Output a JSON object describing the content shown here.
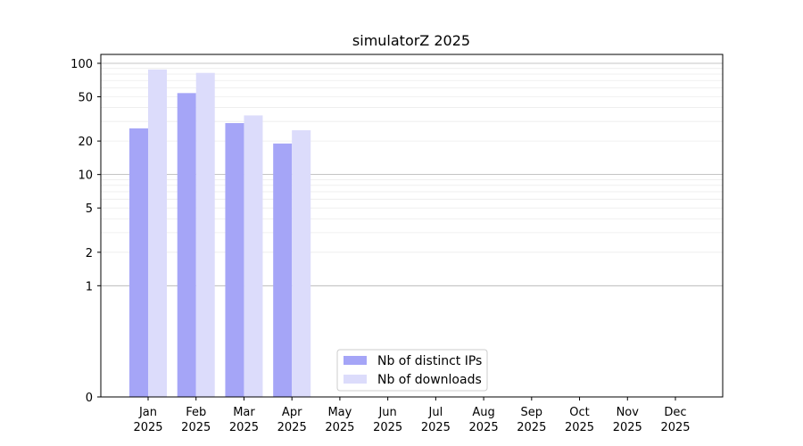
{
  "chart_data": {
    "type": "bar",
    "title": "simulatorZ 2025",
    "xlabel": "",
    "ylabel": "",
    "y_scale": "symlog",
    "y_ticks": [
      0,
      1,
      2,
      5,
      10,
      20,
      50,
      100
    ],
    "y_tick_labels": [
      "0",
      "1",
      "2",
      "5",
      "10",
      "20",
      "50",
      "100"
    ],
    "categories": [
      [
        "Jan",
        "2025"
      ],
      [
        "Feb",
        "2025"
      ],
      [
        "Mar",
        "2025"
      ],
      [
        "Apr",
        "2025"
      ],
      [
        "May",
        "2025"
      ],
      [
        "Jun",
        "2025"
      ],
      [
        "Jul",
        "2025"
      ],
      [
        "Aug",
        "2025"
      ],
      [
        "Sep",
        "2025"
      ],
      [
        "Oct",
        "2025"
      ],
      [
        "Nov",
        "2025"
      ],
      [
        "Dec",
        "2025"
      ]
    ],
    "series": [
      {
        "name": "Nb of distinct IPs",
        "color": "#a5a5f7",
        "values": [
          26,
          54,
          29,
          19,
          0,
          0,
          0,
          0,
          0,
          0,
          0,
          0
        ]
      },
      {
        "name": "Nb of downloads",
        "color": "#dcdcfb",
        "values": [
          88,
          82,
          34,
          25,
          0,
          0,
          0,
          0,
          0,
          0,
          0,
          0
        ]
      }
    ],
    "legend_position": "lower center",
    "grid": true
  }
}
